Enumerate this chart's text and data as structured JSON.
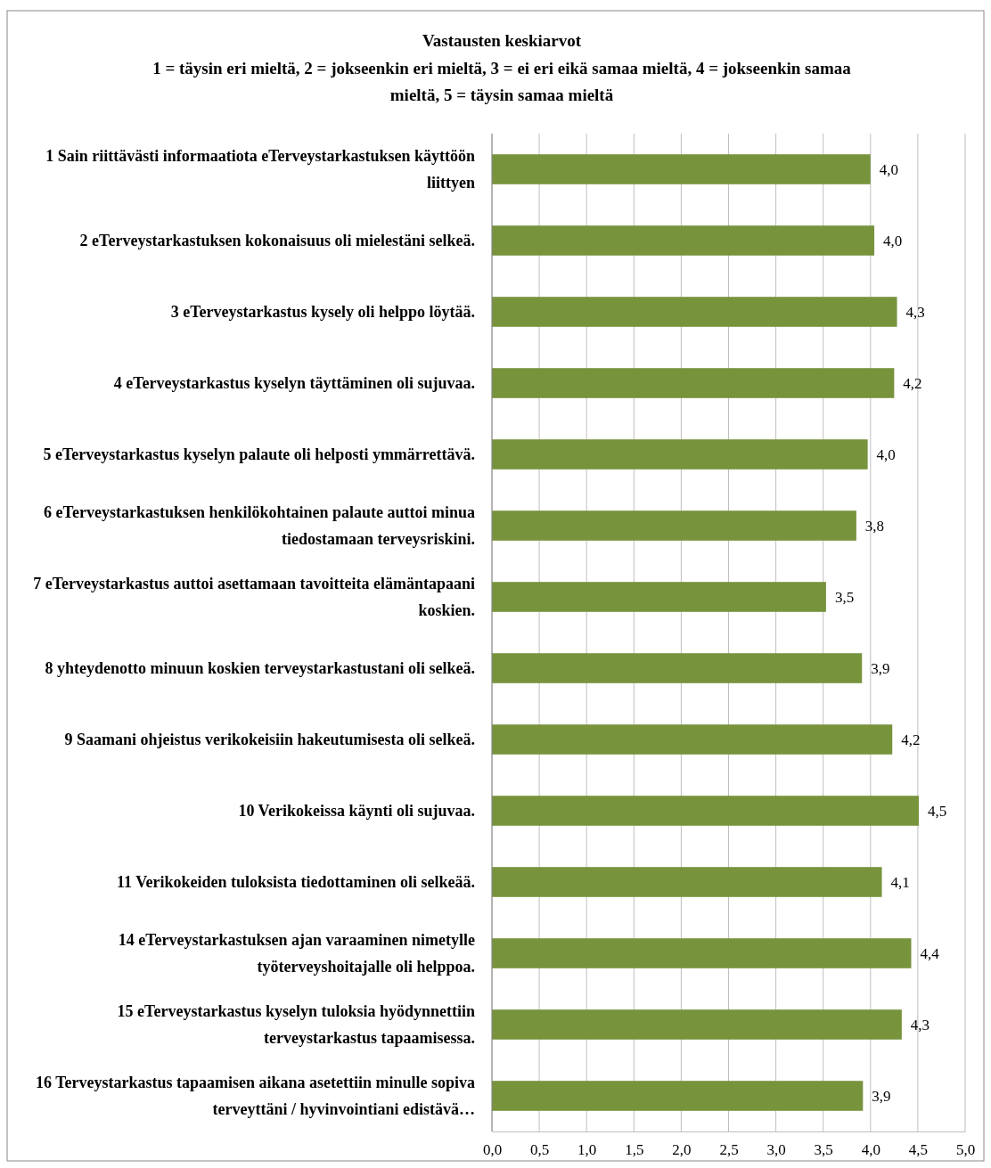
{
  "chart_data": {
    "type": "bar",
    "orientation": "horizontal",
    "title": "Vastausten keskiarvot",
    "subtitle": "1 = täysin eri mieltä, 2 = jokseenkin eri mieltä, 3 = ei eri eikä samaa mieltä, 4 = jokseenkin samaa mieltä, 5 = täysin samaa mieltä",
    "categories": [
      "1 Sain riittävästi informaatiota eTerveystarkastuksen käyttöön liittyen",
      "2 eTerveystarkastuksen kokonaisuus oli mielestäni selkeä.",
      "3 eTerveystarkastus kysely oli helppo löytää.",
      "4 eTerveystarkastus kyselyn täyttäminen oli sujuvaa.",
      "5 eTerveystarkastus kyselyn palaute oli helposti ymmärrettävä.",
      "6 eTerveystarkastuksen henkilökohtainen palaute auttoi minua tiedostamaan terveysriskini.",
      "7 eTerveystarkastus auttoi asettamaan tavoitteita elämäntapaani koskien.",
      "8 yhteydenotto minuun koskien terveystarkastustani oli selkeä.",
      "9 Saamani ohjeistus verikokeisiin hakeutumisesta oli selkeä.",
      "10 Verikokeissa käynti oli sujuvaa.",
      "11 Verikokeiden tuloksista tiedottaminen oli selkeää.",
      "14 eTerveystarkastuksen ajan varaaminen nimetylle työterveyshoitajalle oli helppoa.",
      "15 eTerveystarkastus kyselyn tuloksia hyödynnettiin terveystarkastus tapaamisessa.",
      "16 Terveystarkastus tapaamisen aikana asetettiin minulle sopiva terveyttäni / hyvinvointiani edistävä…"
    ],
    "values": [
      4.0,
      4.04,
      4.28,
      4.25,
      3.97,
      3.85,
      3.53,
      3.91,
      4.23,
      4.51,
      4.12,
      4.43,
      4.33,
      3.92
    ],
    "value_labels": [
      "4,0",
      "4,0",
      "4,3",
      "4,2",
      "4,0",
      "3,8",
      "3,5",
      "3,9",
      "4,2",
      "4,5",
      "4,1",
      "4,4",
      "4,3",
      "3,9"
    ],
    "color": "#77933c",
    "xlim": [
      0,
      5
    ],
    "xticks": [
      {
        "value": 0,
        "label": "0,0"
      },
      {
        "value": 0.5,
        "label": "0,5"
      },
      {
        "value": 1,
        "label": "1,0"
      },
      {
        "value": 1.5,
        "label": "1,5"
      },
      {
        "value": 2,
        "label": "2,0"
      },
      {
        "value": 2.5,
        "label": "2,5"
      },
      {
        "value": 3,
        "label": "3,0"
      },
      {
        "value": 3.5,
        "label": "3,5"
      },
      {
        "value": 4,
        "label": "4,0"
      },
      {
        "value": 4.5,
        "label": "4,5"
      },
      {
        "value": 5,
        "label": "5,0"
      }
    ],
    "grid": "x"
  }
}
